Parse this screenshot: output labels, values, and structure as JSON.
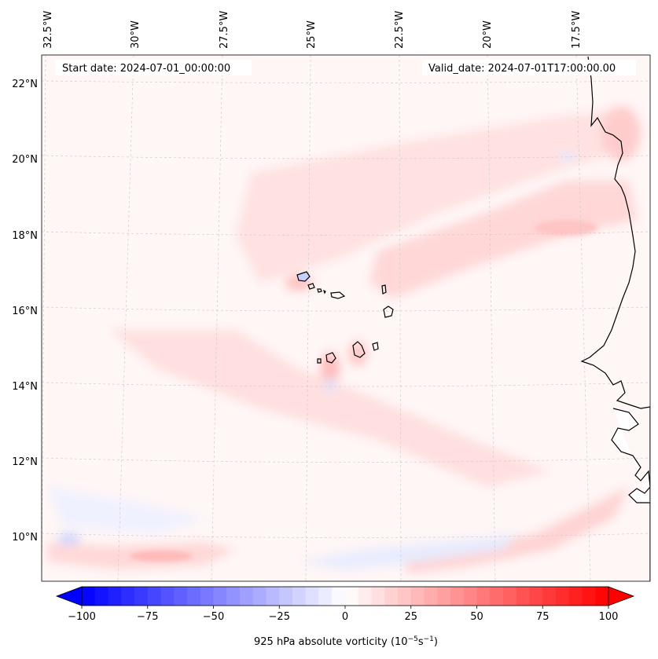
{
  "map": {
    "start_date_label": "Start date: 2024-07-01_00:00:00",
    "valid_date_label": "Valid_date: 2024-07-01T17:00:00.00",
    "lon_labels": [
      "32.5°W",
      "30°W",
      "27.5°W",
      "25°W",
      "22.5°W",
      "20°W",
      "17.5°W"
    ],
    "lat_labels": [
      "22°N",
      "20°N",
      "18°N",
      "16°N",
      "14°N",
      "12°N",
      "10°N"
    ],
    "extent": {
      "lon_min": -32.7,
      "lon_max": -15.3,
      "lat_min": 8.9,
      "lat_max": 22.7
    }
  },
  "colorbar": {
    "min": -100,
    "max": 100,
    "ticks": [
      "−100",
      "−75",
      "−50",
      "−25",
      "0",
      "25",
      "50",
      "75",
      "100"
    ],
    "tick_values": [
      -100,
      -75,
      -50,
      -25,
      0,
      25,
      50,
      75,
      100
    ],
    "label": "925 hPa absolute vorticity (10",
    "label_exp1": "−5",
    "label_mid": "s",
    "label_exp2": "−1",
    "label_end": ")",
    "cmap": "bwr",
    "colors": {
      "low": "#0000ff",
      "mid": "#ffffff",
      "high": "#ff0000"
    }
  }
}
